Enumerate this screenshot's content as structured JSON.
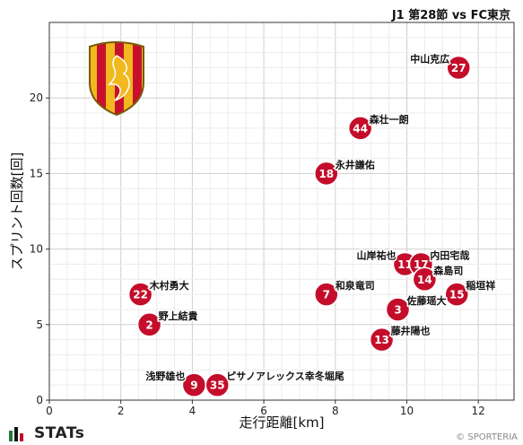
{
  "header": {
    "match_title": "J1 第28節 vs FC東京"
  },
  "footer": {
    "brand": "STATs",
    "credit": "© SPORTERIA"
  },
  "colors": {
    "marker": "#c40d2a",
    "marker_text": "#ffffff",
    "grid": "#d9d9d9",
    "axis": "#333333",
    "crest_red": "#c8102e",
    "crest_gold": "#f2b81f"
  },
  "chart_data": {
    "type": "scatter",
    "xlabel": "走行距離[km]",
    "ylabel": "スプリント回数[回]",
    "xlim": [
      0,
      13
    ],
    "ylim": [
      0,
      25
    ],
    "xticks": [
      0,
      2,
      4,
      6,
      8,
      10,
      12
    ],
    "yticks": [
      0,
      5,
      10,
      15,
      20
    ],
    "grid": true,
    "points": [
      {
        "number": "27",
        "name": "中山克広",
        "x": 11.45,
        "y": 22,
        "label_side": "left"
      },
      {
        "number": "44",
        "name": "森壮一朗",
        "x": 8.7,
        "y": 18,
        "label_side": "right"
      },
      {
        "number": "18",
        "name": "永井謙佑",
        "x": 7.75,
        "y": 15,
        "label_side": "right"
      },
      {
        "number": "11",
        "name": "山岸祐也",
        "x": 9.95,
        "y": 9,
        "label_side": "left"
      },
      {
        "number": "17",
        "name": "内田宅哉",
        "x": 10.4,
        "y": 9,
        "label_side": "right"
      },
      {
        "number": "14",
        "name": "森島司",
        "x": 10.5,
        "y": 8,
        "label_side": "right"
      },
      {
        "number": "15",
        "name": "稲垣祥",
        "x": 11.4,
        "y": 7,
        "label_side": "right"
      },
      {
        "number": "22",
        "name": "木村勇大",
        "x": 2.55,
        "y": 7,
        "label_side": "right"
      },
      {
        "number": "7",
        "name": "和泉竜司",
        "x": 7.75,
        "y": 7,
        "label_side": "right"
      },
      {
        "number": "3",
        "name": "佐藤瑶大",
        "x": 9.75,
        "y": 6,
        "label_side": "right"
      },
      {
        "number": "2",
        "name": "野上結貴",
        "x": 2.8,
        "y": 5,
        "label_side": "right"
      },
      {
        "number": "13",
        "name": "藤井陽也",
        "x": 9.3,
        "y": 4,
        "label_side": "right"
      },
      {
        "number": "9",
        "name": "浅野雄也",
        "x": 4.05,
        "y": 1,
        "label_side": "left"
      },
      {
        "number": "35",
        "name": "ピサノアレックス幸冬堀尾",
        "x": 4.7,
        "y": 1,
        "label_side": "right"
      }
    ]
  }
}
